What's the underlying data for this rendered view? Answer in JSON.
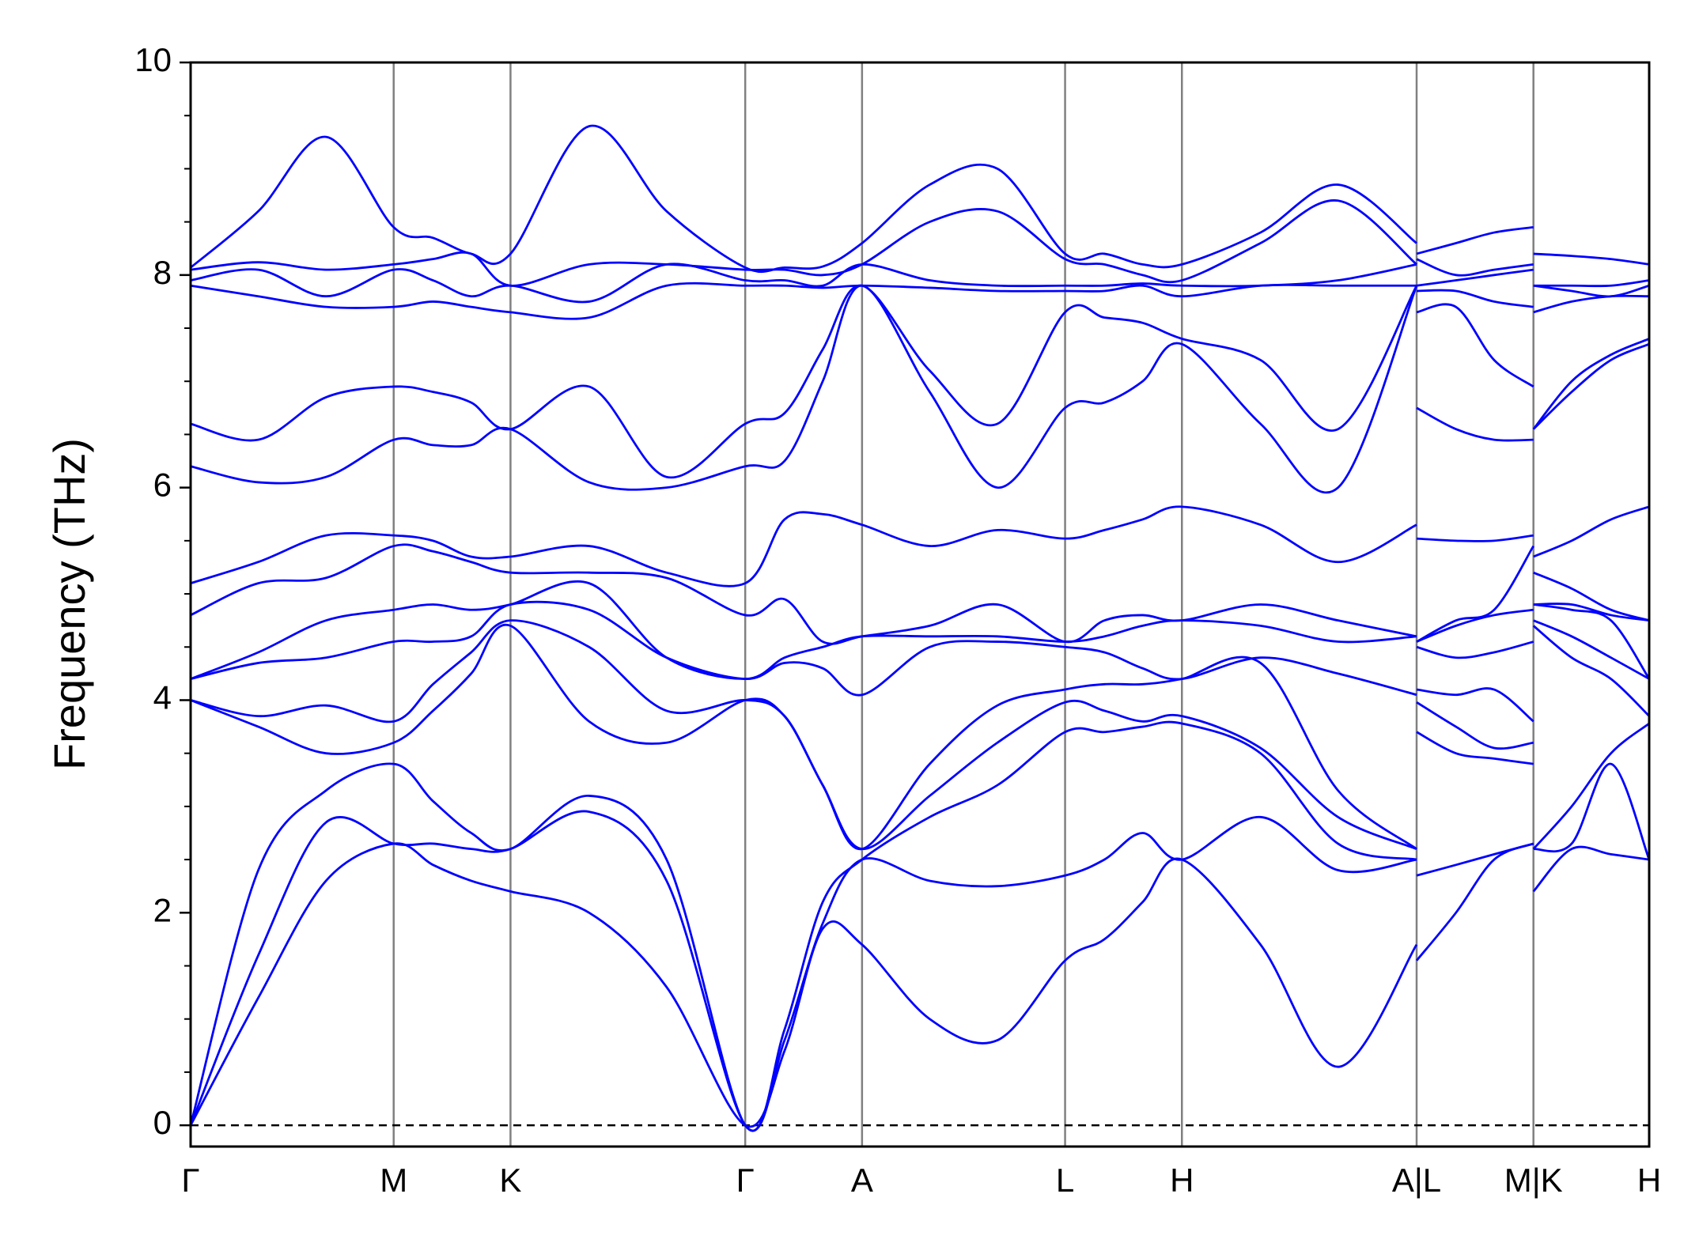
{
  "chart_data": {
    "type": "line",
    "y_label": "Frequency (THz)",
    "color": "#0000ff",
    "xlim": [
      0,
      13.36
    ],
    "ylim": [
      -0.2,
      10
    ],
    "xticks": [
      {
        "value": 0,
        "label": "Γ"
      },
      {
        "value": 1.86,
        "label": "M"
      },
      {
        "value": 2.93,
        "label": "K"
      },
      {
        "value": 5.08,
        "label": "Γ"
      },
      {
        "value": 6.15,
        "label": "A"
      },
      {
        "value": 8.01,
        "label": "L"
      },
      {
        "value": 9.08,
        "label": "H"
      },
      {
        "value": 11.23,
        "label": "A|L"
      },
      {
        "value": 12.3,
        "label": "M|K"
      },
      {
        "value": 13.36,
        "label": "H"
      }
    ],
    "yticks": [
      0,
      2,
      4,
      6,
      8,
      10
    ],
    "yminorticks": [
      0.5,
      1,
      1.5,
      2.5,
      3,
      3.5,
      4.5,
      5,
      5.5,
      6.5,
      7,
      7.5,
      8.5,
      9,
      9.5
    ],
    "x": [
      0,
      0.62,
      1.24,
      1.86,
      2.22,
      2.57,
      2.93,
      3.65,
      4.36,
      5.08,
      5.44,
      5.79,
      6.15,
      6.77,
      7.39,
      8.01,
      8.37,
      8.72,
      9.08,
      9.8,
      10.51,
      11.23,
      11.23,
      11.23,
      11.59,
      11.94,
      12.3,
      12.3,
      12.3,
      12.65,
      13.01,
      13.36
    ],
    "series": [
      {
        "values": [
          0,
          1.2,
          2.3,
          2.65,
          2.45,
          2.3,
          2.2,
          2.0,
          1.3,
          0,
          0.7,
          1.85,
          1.7,
          1.0,
          0.8,
          1.55,
          1.75,
          2.1,
          2.5,
          1.7,
          0.55,
          1.7,
          null,
          1.55,
          2.0,
          2.5,
          2.65,
          null,
          2.2,
          2.6,
          2.55,
          2.5
        ]
      },
      {
        "values": [
          0,
          1.6,
          2.85,
          2.65,
          2.65,
          2.6,
          2.6,
          2.95,
          2.3,
          0,
          0.8,
          1.9,
          2.5,
          2.3,
          2.25,
          2.35,
          2.5,
          2.75,
          2.5,
          2.9,
          2.4,
          2.5,
          null,
          2.35,
          2.45,
          2.55,
          2.65,
          null,
          2.6,
          2.65,
          3.4,
          2.5
        ]
      },
      {
        "values": [
          0,
          2.4,
          3.15,
          3.4,
          3.05,
          2.75,
          2.6,
          3.1,
          2.5,
          0,
          0.9,
          2.1,
          2.5,
          2.9,
          3.2,
          3.7,
          3.7,
          3.75,
          3.78,
          3.5,
          2.65,
          2.5,
          null,
          3.7,
          3.5,
          3.45,
          3.4,
          null,
          2.6,
          3.0,
          3.5,
          3.78
        ]
      },
      {
        "values": [
          4.0,
          3.75,
          3.5,
          3.6,
          3.9,
          4.25,
          4.7,
          3.8,
          3.6,
          4.0,
          3.85,
          3.2,
          2.6,
          3.1,
          3.6,
          3.98,
          3.9,
          3.8,
          3.85,
          3.55,
          2.9,
          2.6,
          null,
          3.98,
          3.75,
          3.55,
          3.6,
          null,
          4.7,
          4.4,
          4.2,
          3.85
        ]
      },
      {
        "values": [
          4.0,
          3.85,
          3.95,
          3.8,
          4.15,
          4.45,
          4.75,
          4.5,
          3.9,
          4.0,
          3.85,
          3.2,
          2.6,
          3.4,
          3.95,
          4.1,
          4.15,
          4.15,
          4.2,
          4.35,
          3.15,
          2.6,
          null,
          4.1,
          4.05,
          4.1,
          3.8,
          null,
          4.75,
          4.6,
          4.4,
          4.2
        ]
      },
      {
        "values": [
          4.2,
          4.35,
          4.4,
          4.55,
          4.55,
          4.6,
          4.9,
          4.85,
          4.4,
          4.2,
          4.35,
          4.3,
          4.05,
          4.5,
          4.55,
          4.5,
          4.45,
          4.3,
          4.2,
          4.4,
          4.25,
          4.05,
          null,
          4.5,
          4.4,
          4.45,
          4.55,
          null,
          4.9,
          4.85,
          4.75,
          4.2
        ]
      },
      {
        "values": [
          4.2,
          4.45,
          4.75,
          4.85,
          4.9,
          4.85,
          4.9,
          5.1,
          4.4,
          4.2,
          4.4,
          4.5,
          4.6,
          4.6,
          4.6,
          4.55,
          4.6,
          4.7,
          4.75,
          4.7,
          4.55,
          4.6,
          null,
          4.55,
          4.7,
          4.8,
          4.85,
          null,
          4.9,
          4.9,
          4.8,
          4.75
        ]
      },
      {
        "values": [
          4.8,
          5.1,
          5.15,
          5.45,
          5.4,
          5.3,
          5.2,
          5.2,
          5.15,
          4.8,
          4.95,
          4.55,
          4.6,
          4.7,
          4.9,
          4.55,
          4.75,
          4.8,
          4.75,
          4.9,
          4.75,
          4.6,
          null,
          4.55,
          4.75,
          4.85,
          5.45,
          null,
          5.2,
          5.05,
          4.85,
          4.75
        ]
      },
      {
        "values": [
          5.1,
          5.3,
          5.55,
          5.55,
          5.5,
          5.35,
          5.35,
          5.45,
          5.2,
          5.1,
          5.7,
          5.75,
          5.65,
          5.45,
          5.6,
          5.52,
          5.6,
          5.7,
          5.82,
          5.65,
          5.3,
          5.65,
          null,
          5.52,
          5.5,
          5.5,
          5.55,
          null,
          5.35,
          5.5,
          5.7,
          5.82
        ]
      },
      {
        "values": [
          6.2,
          6.05,
          6.1,
          6.45,
          6.4,
          6.4,
          6.55,
          6.05,
          6.0,
          6.2,
          6.25,
          7.0,
          7.9,
          6.9,
          6.0,
          6.75,
          6.8,
          7.0,
          7.35,
          6.6,
          6.0,
          7.9,
          null,
          6.75,
          6.55,
          6.45,
          6.45,
          null,
          6.55,
          6.9,
          7.2,
          7.35
        ]
      },
      {
        "values": [
          6.6,
          6.45,
          6.85,
          6.95,
          6.9,
          6.8,
          6.55,
          6.95,
          6.1,
          6.6,
          6.7,
          7.3,
          7.9,
          7.1,
          6.6,
          7.65,
          7.6,
          7.55,
          7.4,
          7.2,
          6.55,
          7.9,
          null,
          7.65,
          7.7,
          7.2,
          6.95,
          null,
          6.55,
          7.0,
          7.25,
          7.4
        ]
      },
      {
        "values": [
          7.9,
          7.8,
          7.7,
          7.7,
          7.75,
          7.7,
          7.65,
          7.6,
          7.9,
          7.9,
          7.9,
          7.88,
          7.9,
          7.88,
          7.85,
          7.85,
          7.85,
          7.9,
          7.8,
          7.9,
          7.9,
          7.9,
          null,
          7.85,
          7.85,
          7.75,
          7.7,
          null,
          7.65,
          7.75,
          7.8,
          7.8
        ]
      },
      {
        "values": [
          7.95,
          8.05,
          7.8,
          8.05,
          7.95,
          7.8,
          7.9,
          7.75,
          8.1,
          7.95,
          7.95,
          7.9,
          8.1,
          7.95,
          7.9,
          7.9,
          7.9,
          7.92,
          7.9,
          7.9,
          7.95,
          8.1,
          null,
          7.9,
          7.95,
          8.0,
          8.05,
          null,
          7.9,
          7.85,
          7.8,
          7.9
        ]
      },
      {
        "values": [
          8.05,
          8.12,
          8.05,
          8.1,
          8.15,
          8.2,
          7.9,
          8.1,
          8.1,
          8.05,
          8.05,
          8.0,
          8.1,
          8.5,
          8.6,
          8.15,
          8.1,
          8.0,
          7.95,
          8.3,
          8.7,
          8.1,
          null,
          8.15,
          8.0,
          8.05,
          8.1,
          null,
          7.9,
          7.9,
          7.9,
          7.95
        ]
      },
      {
        "values": [
          8.07,
          8.6,
          9.3,
          8.45,
          8.35,
          8.2,
          8.2,
          9.4,
          8.6,
          8.07,
          8.07,
          8.08,
          8.3,
          8.85,
          9.0,
          8.2,
          8.2,
          8.1,
          8.1,
          8.4,
          8.85,
          8.3,
          null,
          8.2,
          8.3,
          8.4,
          8.45,
          null,
          8.2,
          8.18,
          8.15,
          8.1
        ]
      }
    ]
  }
}
